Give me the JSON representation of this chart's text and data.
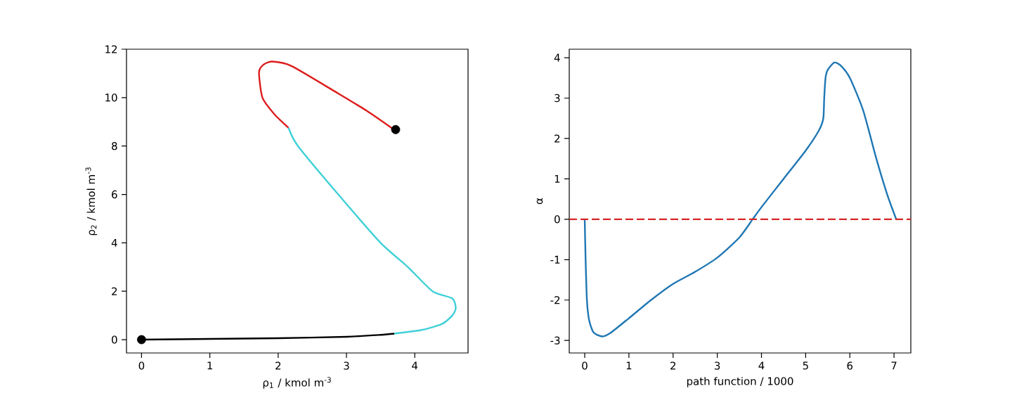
{
  "chart_data": [
    {
      "type": "line",
      "xlabel": "ρ$_{1}$ /  kmol m$^{-3}$",
      "ylabel": "ρ$_{2}$ / kmol m$^{-3}$",
      "xlim": [
        -0.22,
        4.78
      ],
      "ylim": [
        -0.55,
        12
      ],
      "xticks": [
        0,
        1,
        2,
        3,
        4
      ],
      "yticks": [
        0,
        2,
        4,
        6,
        8,
        10,
        12
      ],
      "series": [
        {
          "color": "#000000",
          "x": [
            0,
            1,
            2,
            3,
            3.5,
            3.7
          ],
          "values": [
            0,
            0.03,
            0.06,
            0.12,
            0.2,
            0.25
          ]
        },
        {
          "color": "#40d0d8",
          "x": [
            3.7,
            4.1,
            4.4,
            4.55,
            4.6,
            4.55,
            4.26,
            3.9,
            3.5,
            2.88,
            2.29,
            2.15
          ],
          "values": [
            0.25,
            0.4,
            0.65,
            1.0,
            1.3,
            1.7,
            2.0,
            3.0,
            4.0,
            6.0,
            8.0,
            8.76
          ]
        },
        {
          "color": "#dd1c1c",
          "x": [
            2.15,
            1.95,
            1.77,
            1.72,
            1.78,
            1.91,
            2.2,
            2.88,
            3.3,
            3.69
          ],
          "values": [
            8.76,
            9.3,
            10.0,
            11.04,
            11.35,
            11.49,
            11.3,
            10.17,
            9.45,
            8.69
          ]
        },
        {
          "type": "scatter",
          "marker": "circle",
          "color": "#000000",
          "x": [
            0,
            3.72
          ],
          "values": [
            0,
            8.68
          ]
        }
      ]
    },
    {
      "type": "line",
      "xlabel": "path function / 1000",
      "ylabel": "α",
      "xlim": [
        -0.35,
        7.38
      ],
      "ylim": [
        -3.31,
        4.21
      ],
      "xticks": [
        0,
        1,
        2,
        3,
        4,
        5,
        6,
        7
      ],
      "yticks": [
        -3,
        -2,
        -1,
        0,
        1,
        2,
        3,
        4
      ],
      "ref_lines": [
        {
          "axis": "y",
          "value": 0,
          "color": "#d62728",
          "line_style": "dashed"
        }
      ],
      "series": [
        {
          "color": "#1f77b4",
          "x": [
            0,
            0.02,
            0.05,
            0.1,
            0.2,
            0.4,
            0.6,
            1,
            1.5,
            2,
            2.5,
            3,
            3.5,
            3.8,
            4,
            4.5,
            5,
            5.3,
            5.4,
            5.42,
            5.45,
            5.5,
            5.65,
            5.8,
            6,
            6.3,
            6.6,
            6.85,
            7.05
          ],
          "values": [
            0,
            -1,
            -2,
            -2.5,
            -2.8,
            -2.9,
            -2.8,
            -2.45,
            -2.0,
            -1.6,
            -1.3,
            -0.95,
            -0.45,
            0,
            0.3,
            1.0,
            1.7,
            2.2,
            2.5,
            3.0,
            3.5,
            3.7,
            3.88,
            3.8,
            3.5,
            2.7,
            1.5,
            0.6,
            0
          ]
        }
      ]
    }
  ]
}
